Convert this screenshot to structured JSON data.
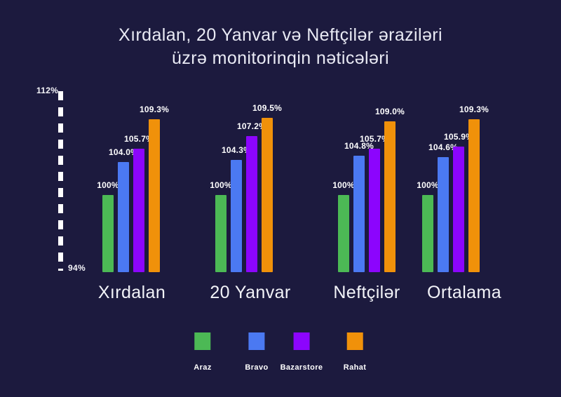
{
  "title": {
    "line1": "Xırdalan, 20 Yanvar və Neftçilər əraziləri",
    "line2": "üzrə monitorinqin nəticələri"
  },
  "axis": {
    "top": "112%",
    "bottom": "94%"
  },
  "colors": {
    "background": "#1c1a3e",
    "text": "#ffffff",
    "title": "#e9eaf4",
    "araz_green": "#4cb955",
    "bravo_blue": "#4b79f2",
    "bazarstore_purple": "#8c05fd",
    "rahat_orange": "#f0910a"
  },
  "chart_data": {
    "type": "bar",
    "title": "Xırdalan, 20 Yanvar və Neftçilər əraziləri üzrə monitorinqin nəticələri",
    "categories": [
      "Xırdalan",
      "20 Yanvar",
      "Neftçilər",
      "Ortalama"
    ],
    "series": [
      {
        "name": "Araz",
        "color": "#4cb955",
        "values": [
          100,
          100,
          100,
          100
        ],
        "labels": [
          "100%",
          "100%",
          "100%",
          "100%"
        ]
      },
      {
        "name": "Bravo",
        "color": "#4b79f2",
        "values": [
          104.0,
          104.3,
          104.8,
          104.6
        ],
        "labels": [
          "104.0%",
          "104.3%",
          "104.8%",
          "104.6%"
        ]
      },
      {
        "name": "Bazarstore",
        "color": "#8c05fd",
        "values": [
          105.7,
          107.2,
          105.7,
          105.9
        ],
        "labels": [
          "105.7%",
          "107.2%",
          "105.7%",
          "105.9%"
        ]
      },
      {
        "name": "Rahat",
        "color": "#f0910a",
        "values": [
          109.3,
          109.5,
          109.0,
          109.3
        ],
        "labels": [
          "109.3%",
          "109.5%",
          "109.0%",
          "109.3%"
        ]
      }
    ],
    "ylabel": "",
    "xlabel": "",
    "ylim": [
      94,
      112
    ],
    "y_axis_ticks": [
      "112%",
      "94%"
    ],
    "grid": false,
    "legend_position": "bottom",
    "legend_entries": [
      "Araz",
      "Bravo",
      "Bazarstore",
      "Rahat"
    ]
  }
}
